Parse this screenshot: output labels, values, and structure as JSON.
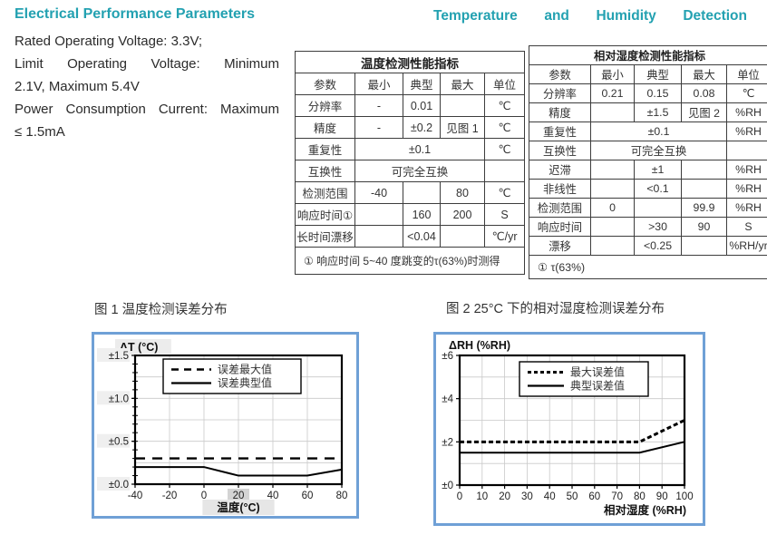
{
  "colors": {
    "heading_teal": "#23A1B1",
    "figure_frame_blue": "#6FA0D6",
    "table_border": "#3d3d3d",
    "grid_gray": "#c9c9c9",
    "line_black": "#000000"
  },
  "intro": {
    "heading": "Electrical Performance Parameters",
    "lines": [
      {
        "text": "Rated Operating Voltage: 3.3V;"
      },
      {
        "text": "Limit Operating Voltage: Minimum"
      },
      {
        "text": "2.1V, Maximum 5.4V"
      },
      {
        "text": "Power Consumption Current: Maximum"
      },
      {
        "text": "≤ 1.5mA"
      }
    ]
  },
  "right_heading": "Temperature and Humidity Detection",
  "tables": [
    {
      "title": "温度检测性能指标",
      "headers": [
        "参数",
        "最小",
        "典型",
        "最大",
        "单位"
      ],
      "rows": [
        [
          {
            "t": "分辨率"
          },
          {
            "t": "-"
          },
          {
            "t": "0.01"
          },
          {
            "t": ""
          },
          {
            "t": "℃"
          }
        ],
        [
          {
            "t": "精度"
          },
          {
            "t": "-"
          },
          {
            "t": "±0.2"
          },
          {
            "t": "见图 1"
          },
          {
            "t": "℃"
          }
        ],
        [
          {
            "t": "重复性"
          },
          {
            "t": "±0.1",
            "c": 3
          },
          {
            "t": "℃"
          }
        ],
        [
          {
            "t": "互换性"
          },
          {
            "t": "可完全互换",
            "c": 3
          },
          {
            "t": ""
          }
        ],
        [
          {
            "t": "检测范围"
          },
          {
            "t": "-40"
          },
          {
            "t": ""
          },
          {
            "t": "80"
          },
          {
            "t": "℃"
          }
        ],
        [
          {
            "t": "响应时间①"
          },
          {
            "t": ""
          },
          {
            "t": "160"
          },
          {
            "t": "200"
          },
          {
            "t": "S"
          }
        ],
        [
          {
            "t": "长时间漂移"
          },
          {
            "t": ""
          },
          {
            "t": "<0.04"
          },
          {
            "t": ""
          },
          {
            "t": "℃/yr"
          }
        ]
      ],
      "footnote": "①    响应时间 5~40 度跳变的τ(63%)时测得"
    },
    {
      "title": "相对湿度检测性能指标",
      "headers": [
        "参数",
        "最小",
        "典型",
        "最大",
        "单位"
      ],
      "rows": [
        [
          {
            "t": "分辨率"
          },
          {
            "t": "0.21"
          },
          {
            "t": "0.15"
          },
          {
            "t": "0.08"
          },
          {
            "t": "℃"
          }
        ],
        [
          {
            "t": "精度"
          },
          {
            "t": ""
          },
          {
            "t": "±1.5"
          },
          {
            "t": "见图 2"
          },
          {
            "t": "%RH"
          }
        ],
        [
          {
            "t": "重复性"
          },
          {
            "t": "±0.1",
            "c": 3
          },
          {
            "t": "%RH"
          }
        ],
        [
          {
            "t": "互换性"
          },
          {
            "t": "可完全互换",
            "c": 3
          },
          {
            "t": ""
          }
        ],
        [
          {
            "t": "迟滞"
          },
          {
            "t": ""
          },
          {
            "t": "±1"
          },
          {
            "t": ""
          },
          {
            "t": "%RH"
          }
        ],
        [
          {
            "t": "非线性"
          },
          {
            "t": ""
          },
          {
            "t": "<0.1"
          },
          {
            "t": ""
          },
          {
            "t": "%RH"
          }
        ],
        [
          {
            "t": "检测范围"
          },
          {
            "t": "0"
          },
          {
            "t": ""
          },
          {
            "t": "99.9"
          },
          {
            "t": "%RH"
          }
        ],
        [
          {
            "t": "响应时间"
          },
          {
            "t": ""
          },
          {
            "t": ">30"
          },
          {
            "t": "90"
          },
          {
            "t": "S"
          }
        ],
        [
          {
            "t": "漂移"
          },
          {
            "t": ""
          },
          {
            "t": "<0.25"
          },
          {
            "t": ""
          },
          {
            "t": "%RH/yr"
          }
        ]
      ],
      "footnote": "①    τ(63%)"
    }
  ],
  "figures": [
    {
      "caption": "图 1  温度检测误差分布"
    },
    {
      "caption": "图 2   25°C 下的相对湿度检测误差分布"
    }
  ],
  "chart_data": [
    {
      "type": "line",
      "title": "图 1 温度检测误差分布",
      "xlabel": "温度(°C)",
      "ylabel": "ΔT (°C)",
      "xlim": [
        -40,
        80
      ],
      "ylim": [
        0,
        1.5
      ],
      "xticks": [
        -40,
        -20,
        0,
        20,
        40,
        60,
        80
      ],
      "xtick_labels": [
        "-40",
        "-20",
        "0",
        "20",
        "40",
        "60",
        "80"
      ],
      "yticks": [
        0,
        0.5,
        1.0,
        1.5
      ],
      "ytick_labels": [
        "±0.0",
        "±0.5",
        "±1.0",
        "±1.5"
      ],
      "grid": true,
      "legend_position": "top-center",
      "series": [
        {
          "name": "误差最大值",
          "style": "dashed",
          "x": [
            -40,
            80
          ],
          "y": [
            0.3,
            0.3
          ]
        },
        {
          "name": "误差典型值",
          "style": "solid",
          "x": [
            -40,
            0,
            20,
            60,
            80
          ],
          "y": [
            0.2,
            0.2,
            0.1,
            0.1,
            0.17
          ]
        }
      ]
    },
    {
      "type": "line",
      "title": "图 2 25°C 下的相对湿度检测误差分布",
      "xlabel": "相对湿度 (%RH)",
      "ylabel": "ΔRH (%RH)",
      "xlim": [
        0,
        100
      ],
      "ylim": [
        0,
        6
      ],
      "xticks": [
        0,
        10,
        20,
        30,
        40,
        50,
        60,
        70,
        80,
        90,
        100
      ],
      "xtick_labels": [
        "0",
        "10",
        "20",
        "30",
        "40",
        "50",
        "60",
        "70",
        "80",
        "90",
        "100"
      ],
      "yticks": [
        0,
        2,
        4,
        6
      ],
      "ytick_labels": [
        "±0",
        "±2",
        "±4",
        "±6"
      ],
      "grid": true,
      "legend_position": "top-center",
      "series": [
        {
          "name": "最大误差值",
          "style": "dashed",
          "x": [
            0,
            80,
            100
          ],
          "y": [
            2,
            2,
            3
          ]
        },
        {
          "name": "典型误差值",
          "style": "solid",
          "x": [
            0,
            80,
            100
          ],
          "y": [
            1.5,
            1.5,
            2
          ]
        }
      ]
    }
  ]
}
